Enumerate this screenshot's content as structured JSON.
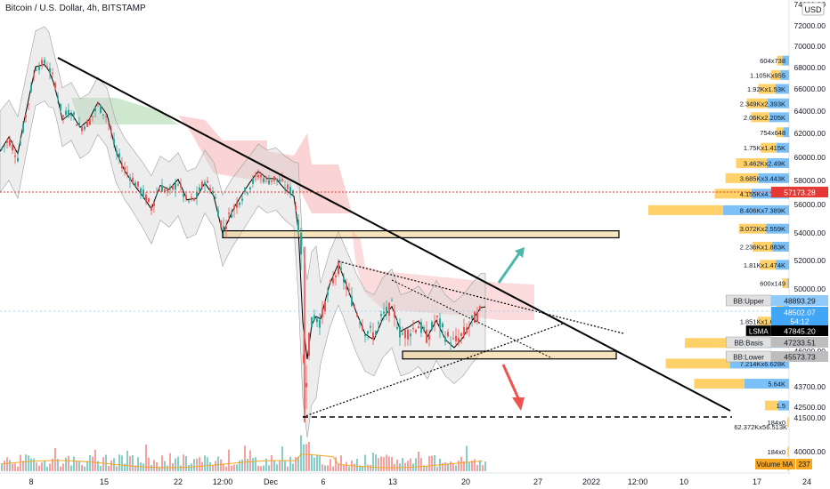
{
  "header": {
    "symbol_line": "Bitcoin / U.S. Dollar, 4h, BITSTAMP",
    "currency": "USD"
  },
  "colors": {
    "up": "#26a69a",
    "down": "#ef5350",
    "trend": "#000000",
    "cloud": "#f6b0b0",
    "cloud_green": "#a5d6a7",
    "band_fill": "#d6d6d6",
    "zone": "#f0c070",
    "vol_ma": "#f5a623",
    "vp_blue": "#64b5f6",
    "vp_orange": "#ffc94d",
    "dotted_red": "#e53935"
  },
  "chart_data": {
    "type": "candlestick",
    "title": "Bitcoin / U.S. Dollar, 4h, BITSTAMP",
    "ylim": [
      39000,
      74000
    ],
    "y_ticks": [
      40000,
      41500,
      42500,
      43700,
      46000,
      48000,
      50000,
      52000,
      54000,
      56000,
      58000,
      60000,
      62000,
      64000,
      66000,
      68000,
      70000,
      72000,
      74000
    ],
    "y_tick_labels": [
      "40000.00",
      "41500.00",
      "42500.00",
      "43700.00",
      "46000.00",
      "48000.00",
      "50000.00",
      "52000.00",
      "54000.00",
      "56000.00",
      "58000.00",
      "60000.00",
      "62000.00",
      "64000.00",
      "66000.00",
      "68000.00",
      "70000.00",
      "72000.00",
      "74000.00"
    ],
    "x_ticks": [
      "8",
      "15",
      "22",
      "12:00",
      "Dec",
      "6",
      "13",
      "20",
      "27",
      "2022",
      "12:00",
      "10",
      "17",
      "24"
    ],
    "price_tags": [
      {
        "label": "57173.28",
        "value": 57173.28,
        "color": "#e53935"
      },
      {
        "label": "48893.29",
        "value": 48893.29,
        "color": "#90caf9"
      },
      {
        "label": "48502.07",
        "value": 48502.07,
        "color": "#42a5f5"
      },
      {
        "label": "54:12",
        "value": 47980,
        "color": "#42a5f5"
      },
      {
        "label": "47845.20",
        "value": 47845.2,
        "color": "#000000"
      },
      {
        "label": "47233.51",
        "value": 47233.51,
        "color": "#bdbdbd"
      },
      {
        "label": "45573.73",
        "value": 45573.73,
        "color": "#bdbdbd"
      }
    ],
    "indicator_labels": [
      "BB:Upper",
      "LSMA",
      "BB:Basis",
      "BB:Lower"
    ],
    "volume_profile": [
      {
        "label": "604x738",
        "price": 68650,
        "buy": 604,
        "sell": 738
      },
      {
        "label": "1.105Kx955",
        "price": 67300,
        "buy": 1105,
        "sell": 955
      },
      {
        "label": "1.92Kx1.53K",
        "price": 66000,
        "buy": 1920,
        "sell": 1530
      },
      {
        "label": "2.349Kx2.393K",
        "price": 64700,
        "buy": 2349,
        "sell": 2393
      },
      {
        "label": "2.06Kx2.205K",
        "price": 63450,
        "buy": 2060,
        "sell": 2205
      },
      {
        "label": "754x648",
        "price": 62100,
        "buy": 754,
        "sell": 648
      },
      {
        "label": "1.75Kx1.415K",
        "price": 60800,
        "buy": 1750,
        "sell": 1415
      },
      {
        "label": "3.462Kx2.49K",
        "price": 59500,
        "buy": 3462,
        "sell": 2490
      },
      {
        "label": "3.685Kx3.443K",
        "price": 58200,
        "buy": 3685,
        "sell": 3443
      },
      {
        "label": "4.155Kx4.196K",
        "price": 56900,
        "buy": 4155,
        "sell": 4196
      },
      {
        "label": "8.406Kx7.389K",
        "price": 55600,
        "buy": 8406,
        "sell": 7389
      },
      {
        "label": "3.072Kx2.559K",
        "price": 54300,
        "buy": 3072,
        "sell": 2559
      },
      {
        "label": "2.236Kx1.883K",
        "price": 53000,
        "buy": 2236,
        "sell": 1883
      },
      {
        "label": "1.81Kx1.474K",
        "price": 51700,
        "buy": 1810,
        "sell": 1474
      },
      {
        "label": "600x149",
        "price": 50400,
        "buy": 600,
        "sell": 149
      },
      {
        "label": "786x648",
        "price": 49100,
        "buy": 786,
        "sell": 648
      },
      {
        "label": "1.851Kx1.663K",
        "price": 47800,
        "buy": 1851,
        "sell": 1663
      },
      {
        "label": "6.",
        "price": 46500,
        "buy": 6500,
        "sell": 5200
      },
      {
        "label": "7.214Kx6.628K",
        "price": 45200,
        "buy": 7214,
        "sell": 6628
      },
      {
        "label": "5.64K",
        "price": 43900,
        "buy": 5640,
        "sell": 5000
      },
      {
        "label": "1.5",
        "price": 42600,
        "buy": 1500,
        "sell": 1200
      },
      {
        "label": "184x0",
        "price": 41300,
        "buy": 184,
        "sell": 0
      },
      {
        "label": "184x0",
        "price": 40000,
        "buy": 184,
        "sell": 0
      },
      {
        "label": "184x0",
        "price": 39200,
        "buy": 184,
        "sell": 0
      },
      {
        "label": "62.372Kx56.513K",
        "price": 38400,
        "buy": 62372,
        "sell": 56513
      }
    ],
    "trendline_labels": [],
    "volume_ma_label": "Volume MA",
    "volume_ma_value": "237",
    "horizontal_zones": [
      {
        "from": 54150,
        "to": 53650
      },
      {
        "from": 46000,
        "to": 45500
      }
    ],
    "horizontal_dashed_level": 41300
  }
}
